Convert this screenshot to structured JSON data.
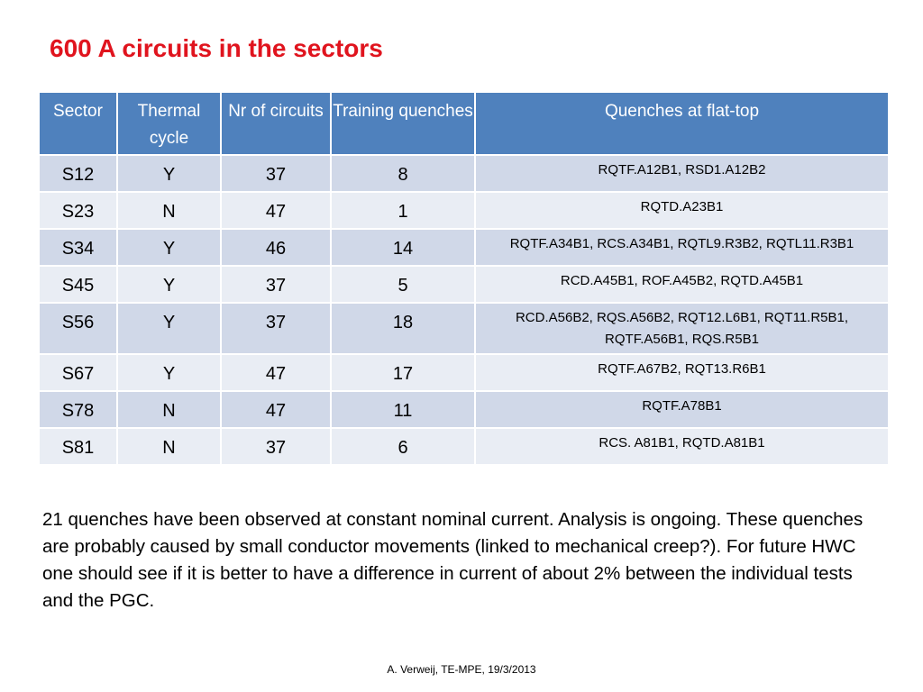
{
  "title": "600 A circuits in the sectors",
  "table": {
    "headers": [
      "Sector",
      "Thermal cycle",
      "Nr of circuits",
      "Training quenches",
      "Quenches at flat-top"
    ],
    "rows": [
      {
        "sector": "S12",
        "thermal": "Y",
        "circuits": "37",
        "training": "8",
        "quenches": "RQTF.A12B1, RSD1.A12B2"
      },
      {
        "sector": "S23",
        "thermal": "N",
        "circuits": "47",
        "training": "1",
        "quenches": "RQTD.A23B1"
      },
      {
        "sector": "S34",
        "thermal": "Y",
        "circuits": "46",
        "training": "14",
        "quenches": "RQTF.A34B1, RCS.A34B1, RQTL9.R3B2, RQTL11.R3B1"
      },
      {
        "sector": "S45",
        "thermal": "Y",
        "circuits": "37",
        "training": "5",
        "quenches": "RCD.A45B1, ROF.A45B2, RQTD.A45B1"
      },
      {
        "sector": "S56",
        "thermal": "Y",
        "circuits": "37",
        "training": "18",
        "quenches": "RCD.A56B2, RQS.A56B2, RQT12.L6B1, RQT11.R5B1, RQTF.A56B1, RQS.R5B1"
      },
      {
        "sector": "S67",
        "thermal": "Y",
        "circuits": "47",
        "training": "17",
        "quenches": "RQTF.A67B2, RQT13.R6B1"
      },
      {
        "sector": "S78",
        "thermal": "N",
        "circuits": "47",
        "training": "11",
        "quenches": "RQTF.A78B1"
      },
      {
        "sector": "S81",
        "thermal": "N",
        "circuits": "37",
        "training": "6",
        "quenches": "RCS. A81B1, RQTD.A81B1"
      }
    ]
  },
  "paragraph": "21 quenches have been observed at constant nominal current.  Analysis is ongoing. These quenches are probably caused by small conductor movements (linked to mechanical creep?). For future HWC one should see if it is better to have a difference in current of about 2% between the individual tests and the PGC.",
  "footer": "A. Verweij, TE-MPE, 19/3/2013",
  "colors": {
    "title": "#e0141e",
    "header_bg": "#4f81bd",
    "row_odd": "#d0d8e8",
    "row_even": "#e9edf4"
  }
}
